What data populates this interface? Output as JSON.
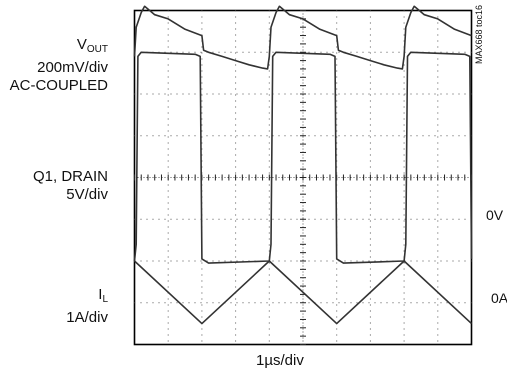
{
  "chart_data": {
    "type": "line",
    "title": "",
    "figure_id": "MAX668 toc16",
    "xlabel": "1µs/div",
    "grid": true,
    "grid_divisions": {
      "x": 10,
      "y": 8
    },
    "period_us": 4.0,
    "x_units": "µs",
    "x_range_us": [
      0,
      10
    ],
    "channels": [
      {
        "name": "V_OUT",
        "label_main": "V",
        "label_sub": "OUT",
        "scale": "200mV/div",
        "coupling": "AC-COUPLED",
        "waveform": [
          [
            0.0,
            6.9
          ],
          [
            0.05,
            7.6
          ],
          [
            0.2,
            7.95
          ],
          [
            0.3,
            8.1
          ],
          [
            0.45,
            8.0
          ],
          [
            0.6,
            7.9
          ],
          [
            1.0,
            7.8
          ],
          [
            1.5,
            7.55
          ],
          [
            2.0,
            7.4
          ],
          [
            2.05,
            7.05
          ],
          [
            2.2,
            7.0
          ],
          [
            2.6,
            6.9
          ],
          [
            3.0,
            6.8
          ],
          [
            3.4,
            6.7
          ],
          [
            3.8,
            6.62
          ],
          [
            3.95,
            6.6
          ],
          [
            4.0,
            6.9
          ]
        ]
      },
      {
        "name": "Q1, DRAIN",
        "label_main": "Q1, DRAIN",
        "scale": "5V/div",
        "reference_label": "0V",
        "waveform": [
          [
            0.0,
            2.0
          ],
          [
            0.05,
            2.4
          ],
          [
            0.1,
            6.9
          ],
          [
            0.2,
            7.0
          ],
          [
            1.8,
            6.95
          ],
          [
            1.95,
            6.9
          ],
          [
            2.0,
            2.05
          ],
          [
            2.2,
            1.95
          ],
          [
            4.0,
            2.0
          ]
        ]
      },
      {
        "name": "I_L",
        "label_main": "I",
        "label_sub": "L",
        "scale": "1A/div",
        "reference_label": "0A",
        "waveform": [
          [
            0.0,
            2.0
          ],
          [
            2.0,
            0.5
          ],
          [
            4.0,
            2.0
          ]
        ]
      }
    ],
    "colors": {
      "trace": "#333333",
      "grid": "#555555",
      "frame": "#000000"
    }
  }
}
